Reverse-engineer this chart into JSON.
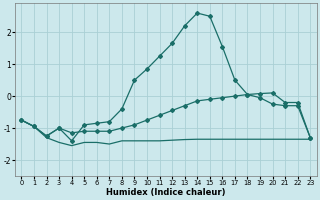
{
  "xlabel": "Humidex (Indice chaleur)",
  "background_color": "#cce8ec",
  "grid_color": "#aad0d5",
  "line_color": "#1a6e68",
  "xlim": [
    -0.5,
    23.5
  ],
  "ylim": [
    -2.5,
    2.9
  ],
  "xticks": [
    0,
    1,
    2,
    3,
    4,
    5,
    6,
    7,
    8,
    9,
    10,
    11,
    12,
    13,
    14,
    15,
    16,
    17,
    18,
    19,
    20,
    21,
    22,
    23
  ],
  "yticks": [
    -2,
    -1,
    0,
    1,
    2
  ],
  "line1_x": [
    0,
    1,
    2,
    3,
    4,
    5,
    6,
    7,
    8,
    9,
    10,
    11,
    12,
    13,
    14,
    15,
    16,
    17,
    18,
    19,
    20,
    21,
    22,
    23
  ],
  "line1_y": [
    -0.75,
    -0.95,
    -1.25,
    -1.0,
    -1.4,
    -0.9,
    -0.85,
    -0.8,
    -0.4,
    0.5,
    0.85,
    1.25,
    1.65,
    2.2,
    2.6,
    2.5,
    1.55,
    0.5,
    0.05,
    -0.05,
    -0.25,
    -0.3,
    -0.3,
    -1.3
  ],
  "line2_x": [
    0,
    1,
    2,
    3,
    4,
    5,
    6,
    7,
    8,
    9,
    10,
    11,
    12,
    13,
    14,
    15,
    16,
    17,
    18,
    19,
    20,
    21,
    22,
    23
  ],
  "line2_y": [
    -0.75,
    -0.95,
    -1.25,
    -1.0,
    -1.15,
    -1.1,
    -1.1,
    -1.1,
    -1.0,
    -0.9,
    -0.75,
    -0.6,
    -0.45,
    -0.3,
    -0.15,
    -0.1,
    -0.05,
    0.0,
    0.05,
    0.08,
    0.1,
    -0.2,
    -0.2,
    -1.3
  ],
  "line3_x": [
    0,
    1,
    2,
    3,
    4,
    5,
    6,
    7,
    8,
    9,
    10,
    11,
    12,
    13,
    14,
    15,
    16,
    17,
    18,
    19,
    20,
    21,
    22,
    23
  ],
  "line3_y": [
    -0.75,
    -0.95,
    -1.3,
    -1.45,
    -1.55,
    -1.45,
    -1.45,
    -1.5,
    -1.4,
    -1.4,
    -1.4,
    -1.4,
    -1.38,
    -1.36,
    -1.35,
    -1.35,
    -1.35,
    -1.35,
    -1.35,
    -1.35,
    -1.35,
    -1.35,
    -1.35,
    -1.35
  ]
}
